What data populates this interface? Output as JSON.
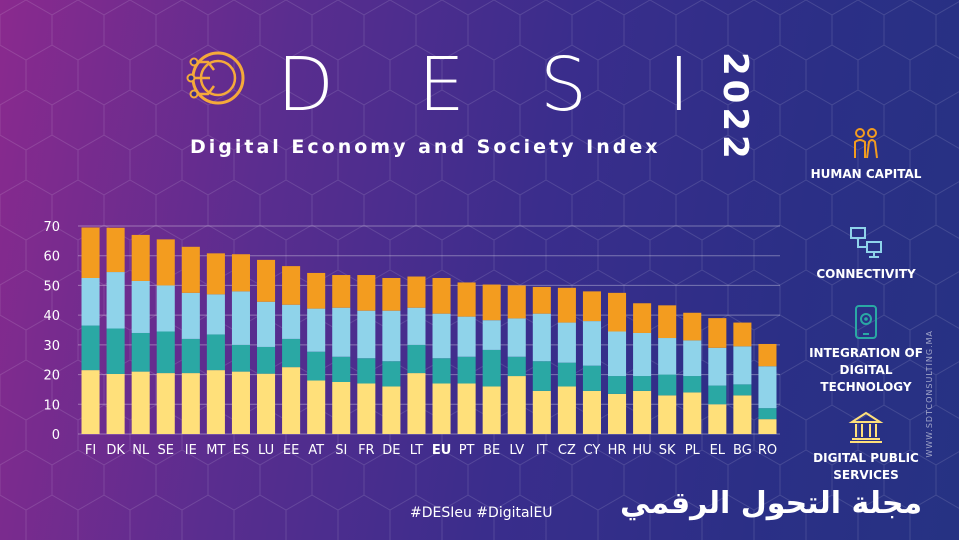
{
  "header": {
    "title_letters": [
      "D",
      "E",
      "S",
      "I"
    ],
    "year": "2022",
    "subtitle": "Digital Economy and Society Index"
  },
  "legend": [
    {
      "label": "HUMAN CAPITAL",
      "icon": "people-icon",
      "color": "#f39c1f"
    },
    {
      "label": "CONNECTIVITY",
      "icon": "network-icon",
      "color": "#8fd3ea"
    },
    {
      "label": "INTEGRATION OF DIGITAL TECHNOLOGY",
      "icon": "mobile-gear-icon",
      "color": "#2aa8a4"
    },
    {
      "label": "DIGITAL PUBLIC SERVICES",
      "icon": "government-building-icon",
      "color": "#ffe07a"
    }
  ],
  "footer": {
    "hashtags": "#DESIeu  #DigitalEU",
    "arabic_brand": "مجلة التحول الرقمي",
    "watermark": "WWW.SDTCONSULTING.MA"
  },
  "chart_data": {
    "type": "bar",
    "stacked": true,
    "categories": [
      "FI",
      "DK",
      "NL",
      "SE",
      "IE",
      "MT",
      "ES",
      "LU",
      "EE",
      "AT",
      "SI",
      "FR",
      "DE",
      "LT",
      "EU",
      "PT",
      "BE",
      "LV",
      "IT",
      "CZ",
      "CY",
      "HR",
      "HU",
      "SK",
      "PL",
      "EL",
      "BG",
      "RO"
    ],
    "highlight_category": "EU",
    "ylim": [
      0,
      70
    ],
    "yticks": [
      0,
      10,
      20,
      30,
      40,
      50,
      60,
      70
    ],
    "grid": true,
    "series": [
      {
        "name": "DIGITAL PUBLIC SERVICES",
        "color": "#ffe07a",
        "values": [
          21.5,
          20.2,
          21.0,
          20.5,
          20.5,
          21.5,
          21.0,
          20.3,
          22.5,
          18.0,
          17.5,
          17.0,
          16.0,
          20.5,
          17.0,
          17.0,
          16.0,
          19.5,
          14.5,
          16.0,
          14.5,
          13.5,
          14.5,
          13.0,
          14.0,
          10.0,
          13.0,
          5.0
        ]
      },
      {
        "name": "INTEGRATION OF DIGITAL TECHNOLOGY",
        "color": "#2aa8a4",
        "values": [
          15.0,
          15.3,
          13.0,
          14.0,
          11.5,
          12.0,
          9.0,
          9.0,
          9.5,
          9.7,
          8.5,
          8.5,
          8.5,
          9.5,
          8.5,
          9.0,
          12.3,
          6.5,
          10.0,
          8.0,
          8.5,
          6.0,
          5.0,
          7.0,
          5.5,
          6.3,
          3.7,
          3.7
        ]
      },
      {
        "name": "CONNECTIVITY",
        "color": "#8fd3ea",
        "values": [
          16.0,
          19.0,
          17.5,
          15.5,
          15.5,
          13.5,
          18.0,
          15.2,
          11.5,
          14.5,
          16.5,
          16.0,
          17.0,
          12.5,
          15.0,
          13.5,
          10.0,
          12.9,
          16.0,
          13.5,
          15.0,
          15.0,
          14.5,
          12.3,
          12.0,
          12.7,
          12.8,
          14.1
        ]
      },
      {
        "name": "HUMAN CAPITAL",
        "color": "#f39c1f",
        "values": [
          17.0,
          14.9,
          15.5,
          15.5,
          15.5,
          13.8,
          12.5,
          14.1,
          13.0,
          12.0,
          11.0,
          12.0,
          11.0,
          10.5,
          12.0,
          11.5,
          12.0,
          11.1,
          9.0,
          11.7,
          10.0,
          13.0,
          10.0,
          11.0,
          9.3,
          10.0,
          8.0,
          7.5
        ]
      }
    ]
  }
}
